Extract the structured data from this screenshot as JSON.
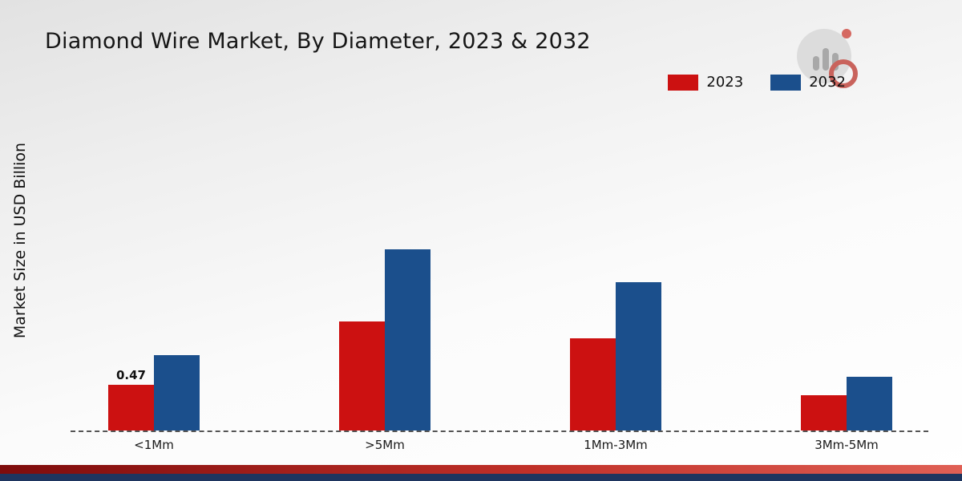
{
  "chart_data": {
    "type": "bar",
    "title": "Diamond Wire Market, By Diameter, 2023 & 2032",
    "ylabel": "Market Size in USD Billion",
    "xlabel": "",
    "categories": [
      "<1Mm",
      ">5Mm",
      "1Mm-3Mm",
      "3Mm-5Mm"
    ],
    "series": [
      {
        "name": "2023",
        "color": "#cc1111",
        "values": [
          0.47,
          1.12,
          0.95,
          0.36
        ]
      },
      {
        "name": "2032",
        "color": "#1b4f8c",
        "values": [
          0.78,
          1.87,
          1.53,
          0.55
        ]
      }
    ],
    "annotations": [
      {
        "category_index": 0,
        "series": "2023",
        "text": "0.47"
      }
    ],
    "ylim": [
      0,
      2.2
    ],
    "grid": false,
    "legend_position": "top-right",
    "baseline_style": "dashed"
  },
  "branding": {
    "logo": "bar-chart-in-circle-watermark",
    "footer_red_color": "#b01f18",
    "footer_navy_color": "#1e355f"
  }
}
